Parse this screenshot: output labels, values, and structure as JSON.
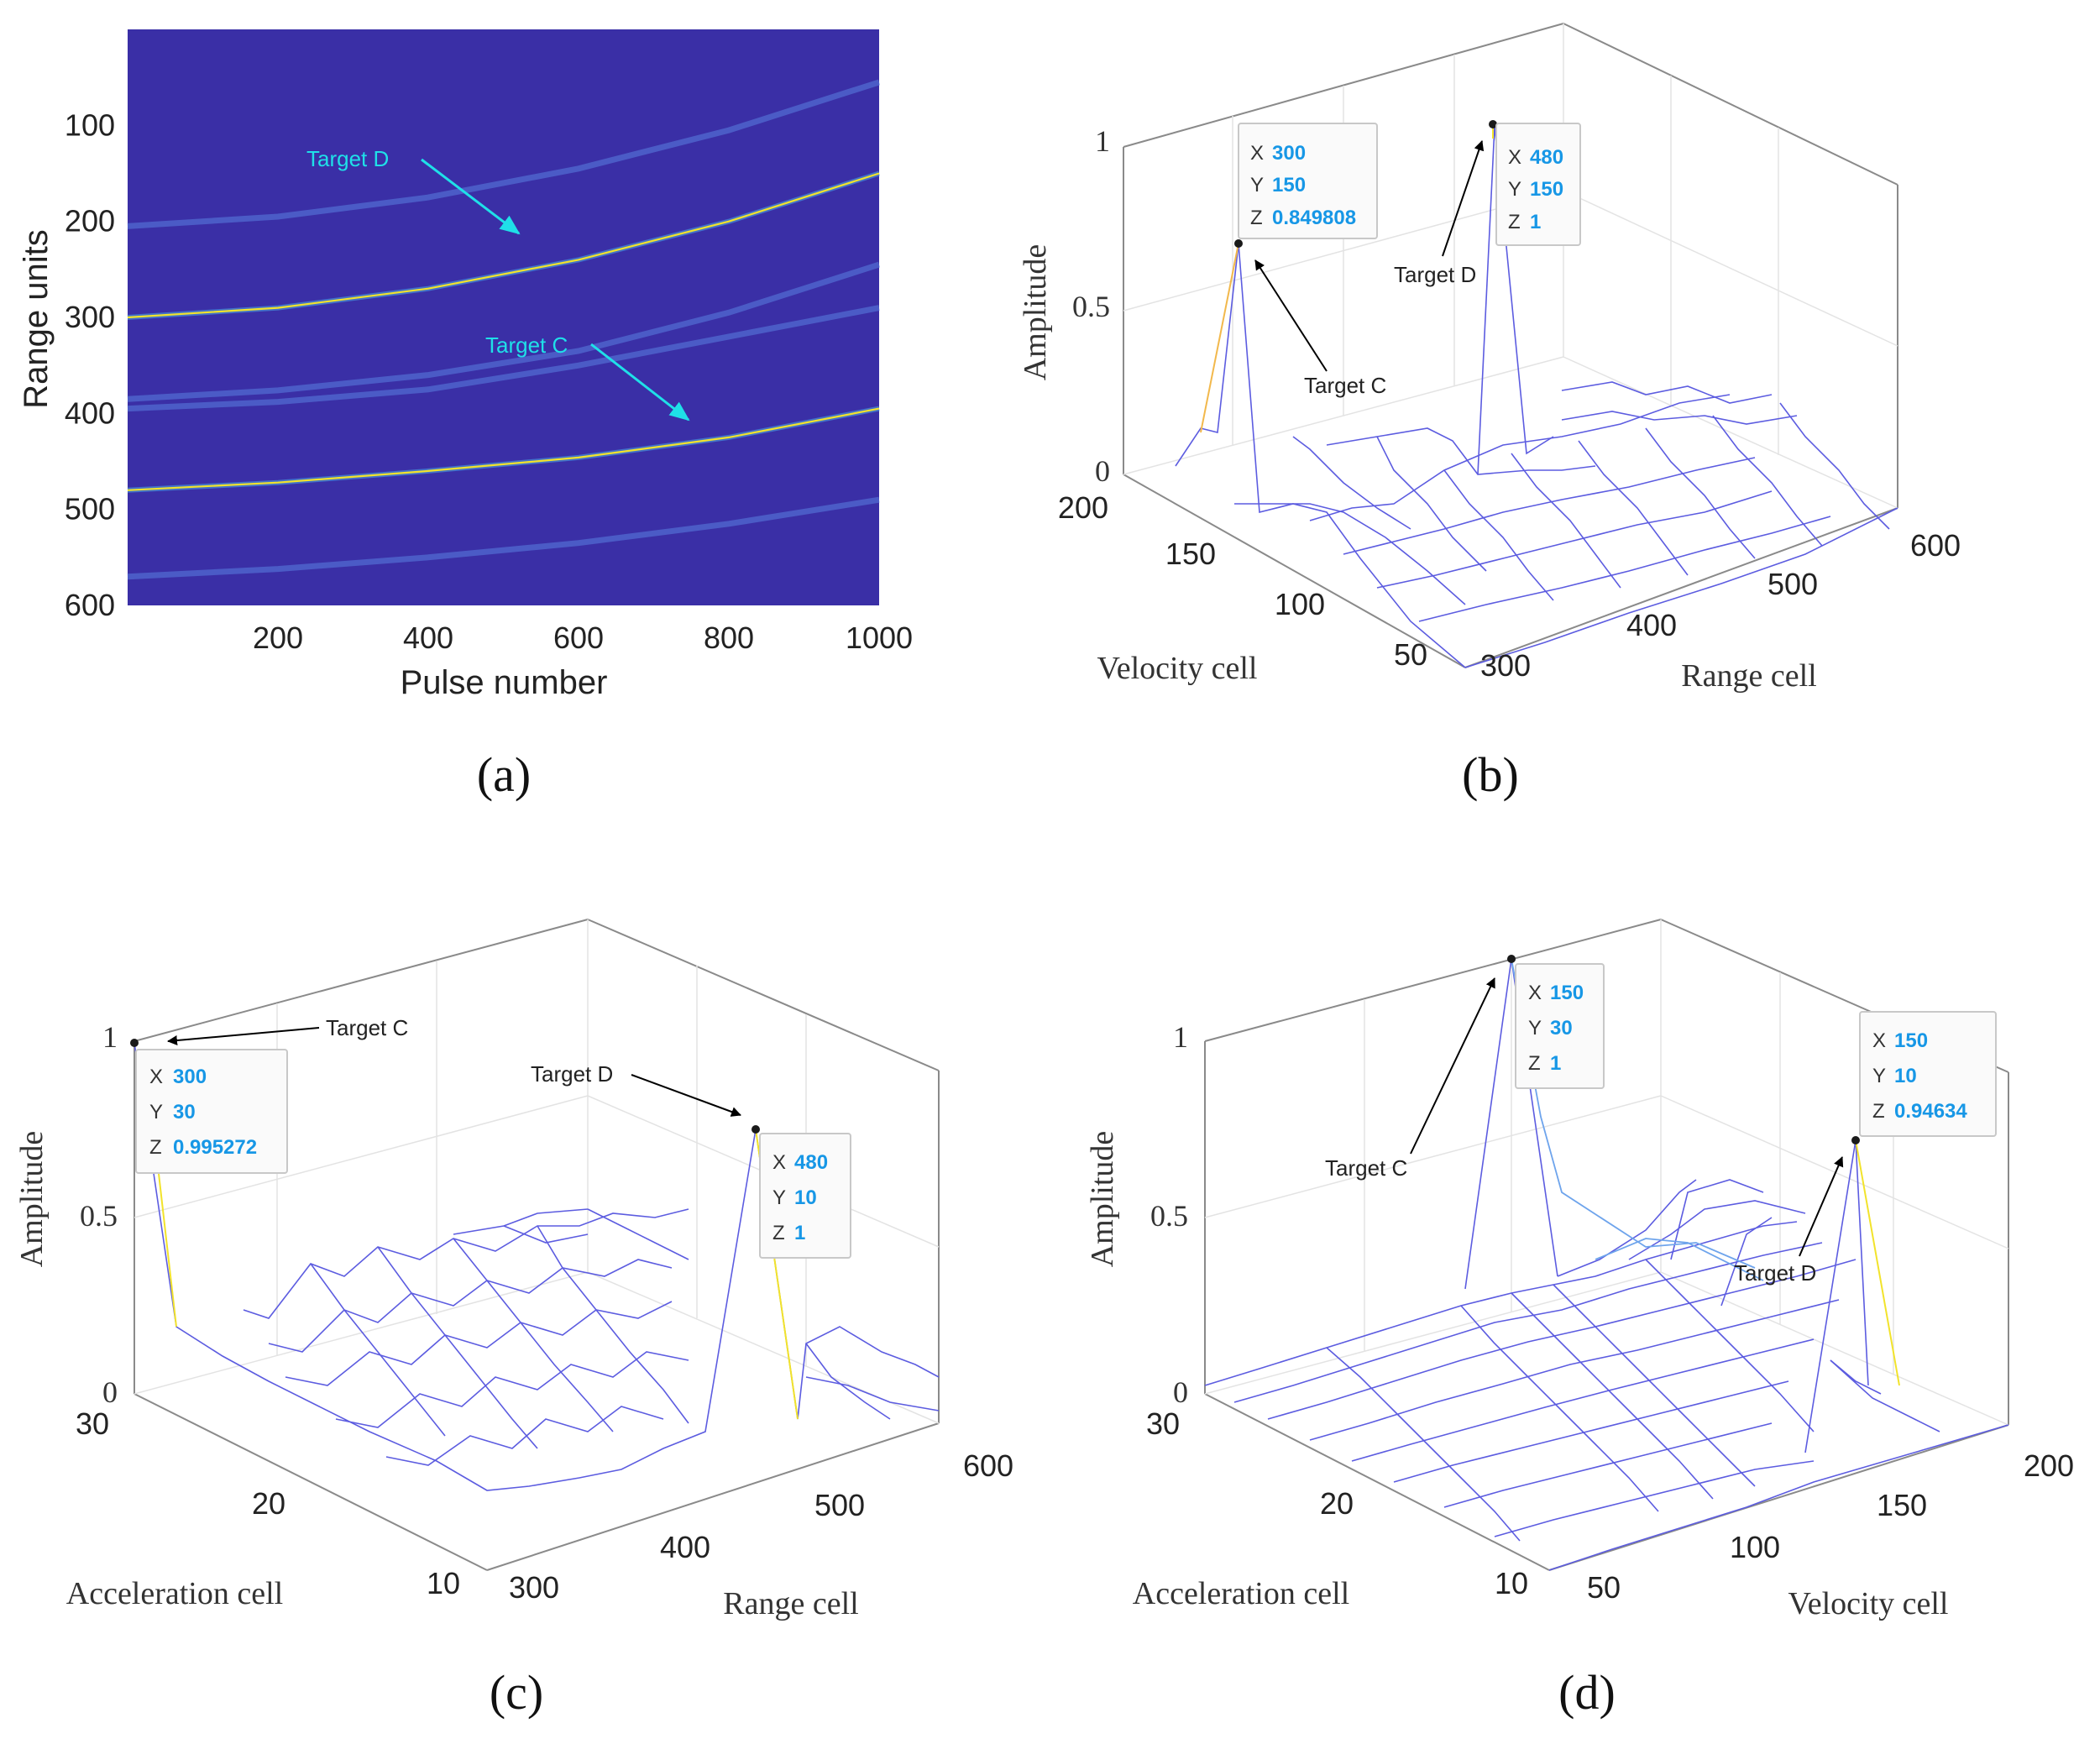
{
  "colors": {
    "background": "#ffffff",
    "heatmap_bg": "#3a2fa6",
    "mesh": "#5c5ce0",
    "stem": "#f2e32b",
    "tip_value": "#1797e6",
    "callout_cyan": "#1fe0e8"
  },
  "chart_data": [
    {
      "panel": "(a)",
      "type": "heatmap",
      "xlabel": "Pulse number",
      "ylabel": "Range units",
      "xlim": [
        0,
        1000
      ],
      "ylim": [
        600,
        0
      ],
      "xticks": [
        "200",
        "400",
        "600",
        "800",
        "1000"
      ],
      "yticks": [
        "100",
        "200",
        "300",
        "400",
        "500",
        "600"
      ],
      "annotations": [
        {
          "text": "Target D",
          "color": "#1fe0e8",
          "points_to": [
            750,
            210
          ]
        },
        {
          "text": "Target C",
          "color": "#1fe0e8",
          "points_to": [
            750,
            390
          ]
        }
      ],
      "bright_traces": [
        {
          "name": "Target D",
          "x": [
            0,
            200,
            400,
            600,
            800,
            1000
          ],
          "y": [
            300,
            290,
            270,
            240,
            200,
            150
          ]
        },
        {
          "name": "Target C",
          "x": [
            0,
            200,
            400,
            600,
            800,
            1000
          ],
          "y": [
            480,
            472,
            460,
            446,
            425,
            395
          ]
        }
      ],
      "faint_traces": [
        {
          "x": [
            0,
            200,
            400,
            600,
            800,
            1000
          ],
          "y": [
            205,
            195,
            175,
            145,
            105,
            55
          ]
        },
        {
          "x": [
            0,
            200,
            400,
            600,
            800,
            1000
          ],
          "y": [
            385,
            376,
            360,
            335,
            295,
            245
          ]
        },
        {
          "x": [
            0,
            200,
            400,
            600,
            800,
            1000
          ],
          "y": [
            395,
            388,
            375,
            350,
            320,
            290
          ]
        },
        {
          "x": [
            0,
            200,
            400,
            600,
            800,
            1000
          ],
          "y": [
            570,
            562,
            550,
            535,
            515,
            490
          ]
        }
      ]
    },
    {
      "panel": "(b)",
      "type": "surface",
      "xlabel": "Range cell",
      "ylabel": "Velocity cell",
      "zlabel": "Amplitude",
      "xticks": [
        "300",
        "400",
        "500",
        "600"
      ],
      "yticks": [
        "50",
        "100",
        "150",
        "200"
      ],
      "zticks": [
        "0",
        "0.5",
        "1"
      ],
      "peaks": [
        {
          "x": 300,
          "y": 150,
          "z": 0.849808
        },
        {
          "x": 480,
          "y": 150,
          "z": 1
        }
      ],
      "datatips": [
        {
          "x": "300",
          "y": "150",
          "z": "0.849808"
        },
        {
          "x": "480",
          "y": "150",
          "z": "1"
        }
      ],
      "annotations": [
        "Target C",
        "Target D"
      ]
    },
    {
      "panel": "(c)",
      "type": "surface",
      "xlabel": "Range cell",
      "ylabel": "Acceleration cell",
      "zlabel": "Amplitude",
      "xticks": [
        "300",
        "400",
        "500",
        "600"
      ],
      "yticks": [
        "10",
        "20",
        "30"
      ],
      "zticks": [
        "0",
        "0.5",
        "1"
      ],
      "peaks": [
        {
          "x": 300,
          "y": 30,
          "z": 0.995272
        },
        {
          "x": 480,
          "y": 10,
          "z": 1
        }
      ],
      "datatips": [
        {
          "x": "300",
          "y": "30",
          "z": "0.995272"
        },
        {
          "x": "480",
          "y": "10",
          "z": "1"
        }
      ],
      "annotations": [
        "Target C",
        "Target D"
      ]
    },
    {
      "panel": "(d)",
      "type": "surface",
      "xlabel": "Velocity cell",
      "ylabel": "Acceleration cell",
      "zlabel": "Amplitude",
      "xticks": [
        "50",
        "100",
        "150",
        "200"
      ],
      "yticks": [
        "10",
        "20",
        "30"
      ],
      "zticks": [
        "0",
        "0.5",
        "1"
      ],
      "peaks": [
        {
          "x": 150,
          "y": 30,
          "z": 1
        },
        {
          "x": 150,
          "y": 10,
          "z": 0.94634
        }
      ],
      "datatips": [
        {
          "x": "150",
          "y": "30",
          "z": "1"
        },
        {
          "x": "150",
          "y": "10",
          "z": "0.94634"
        }
      ],
      "annotations": [
        "Target C",
        "Target D"
      ]
    }
  ],
  "tip_keys": {
    "x": "X",
    "y": "Y",
    "z": "Z"
  }
}
